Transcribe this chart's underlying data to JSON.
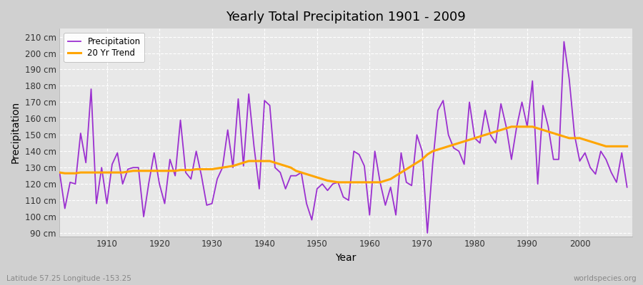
{
  "title": "Yearly Total Precipitation 1901 - 2009",
  "xlabel": "Year",
  "ylabel": "Precipitation",
  "subtitle_left": "Latitude 57.25 Longitude -153.25",
  "subtitle_right": "worldspecies.org",
  "precipitation_color": "#9b30d0",
  "trend_color": "#ffa500",
  "fig_bg_color": "#d0d0d0",
  "plot_bg_color": "#e8e8e8",
  "ylim": [
    88,
    215
  ],
  "yticks": [
    90,
    100,
    110,
    120,
    130,
    140,
    150,
    160,
    170,
    180,
    190,
    200,
    210
  ],
  "xlim": [
    1901,
    2010
  ],
  "xticks": [
    1910,
    1920,
    1930,
    1940,
    1950,
    1960,
    1970,
    1980,
    1990,
    2000
  ],
  "years": [
    1901,
    1902,
    1903,
    1904,
    1905,
    1906,
    1907,
    1908,
    1909,
    1910,
    1911,
    1912,
    1913,
    1914,
    1915,
    1916,
    1917,
    1918,
    1919,
    1920,
    1921,
    1922,
    1923,
    1924,
    1925,
    1926,
    1927,
    1928,
    1929,
    1930,
    1931,
    1932,
    1933,
    1934,
    1935,
    1936,
    1937,
    1938,
    1939,
    1940,
    1941,
    1942,
    1943,
    1944,
    1945,
    1946,
    1947,
    1948,
    1949,
    1950,
    1951,
    1952,
    1953,
    1954,
    1955,
    1956,
    1957,
    1958,
    1959,
    1960,
    1961,
    1962,
    1963,
    1964,
    1965,
    1966,
    1967,
    1968,
    1969,
    1970,
    1971,
    1972,
    1973,
    1974,
    1975,
    1976,
    1977,
    1978,
    1979,
    1980,
    1981,
    1982,
    1983,
    1984,
    1985,
    1986,
    1987,
    1988,
    1989,
    1990,
    1991,
    1992,
    1993,
    1994,
    1995,
    1996,
    1997,
    1998,
    1999,
    2000,
    2001,
    2002,
    2003,
    2004,
    2005,
    2006,
    2007,
    2008,
    2009
  ],
  "precipitation": [
    127,
    105,
    121,
    120,
    151,
    133,
    178,
    108,
    130,
    108,
    132,
    139,
    120,
    129,
    130,
    130,
    100,
    121,
    139,
    120,
    108,
    135,
    125,
    159,
    127,
    123,
    140,
    125,
    107,
    108,
    123,
    130,
    153,
    130,
    172,
    131,
    175,
    143,
    117,
    171,
    168,
    130,
    127,
    117,
    125,
    125,
    127,
    108,
    98,
    117,
    120,
    116,
    120,
    121,
    112,
    110,
    140,
    138,
    131,
    101,
    140,
    121,
    107,
    118,
    101,
    139,
    121,
    119,
    150,
    140,
    90,
    132,
    165,
    171,
    150,
    142,
    140,
    132,
    170,
    148,
    145,
    165,
    150,
    145,
    169,
    155,
    135,
    155,
    170,
    155,
    183,
    120,
    168,
    155,
    135,
    135,
    207,
    184,
    150,
    134,
    139,
    130,
    126,
    140,
    135,
    127,
    121,
    139,
    118
  ],
  "trend": [
    127,
    126.5,
    126.5,
    126.5,
    127,
    127,
    127,
    127,
    127,
    127,
    127,
    127,
    127,
    127.5,
    128,
    128,
    128,
    128,
    128,
    128,
    128,
    128,
    128,
    128.5,
    128.5,
    128.5,
    129,
    129,
    129,
    129,
    129.5,
    130,
    130.5,
    131,
    132,
    133,
    134,
    134,
    134,
    134,
    134,
    133,
    132,
    131,
    130,
    128,
    127,
    126,
    125,
    124,
    123,
    122,
    121.5,
    121,
    121,
    121,
    121,
    121,
    121,
    121,
    121,
    121,
    122,
    123,
    125,
    127,
    129,
    131,
    133,
    135,
    138,
    140,
    141,
    142,
    143,
    144,
    145,
    146,
    147,
    148,
    149,
    150,
    151,
    152,
    153,
    154,
    155,
    155,
    155,
    155,
    155,
    154,
    153,
    152,
    151,
    150,
    149,
    148,
    148,
    148,
    147,
    146,
    145,
    144,
    143,
    143,
    143,
    143,
    143
  ]
}
